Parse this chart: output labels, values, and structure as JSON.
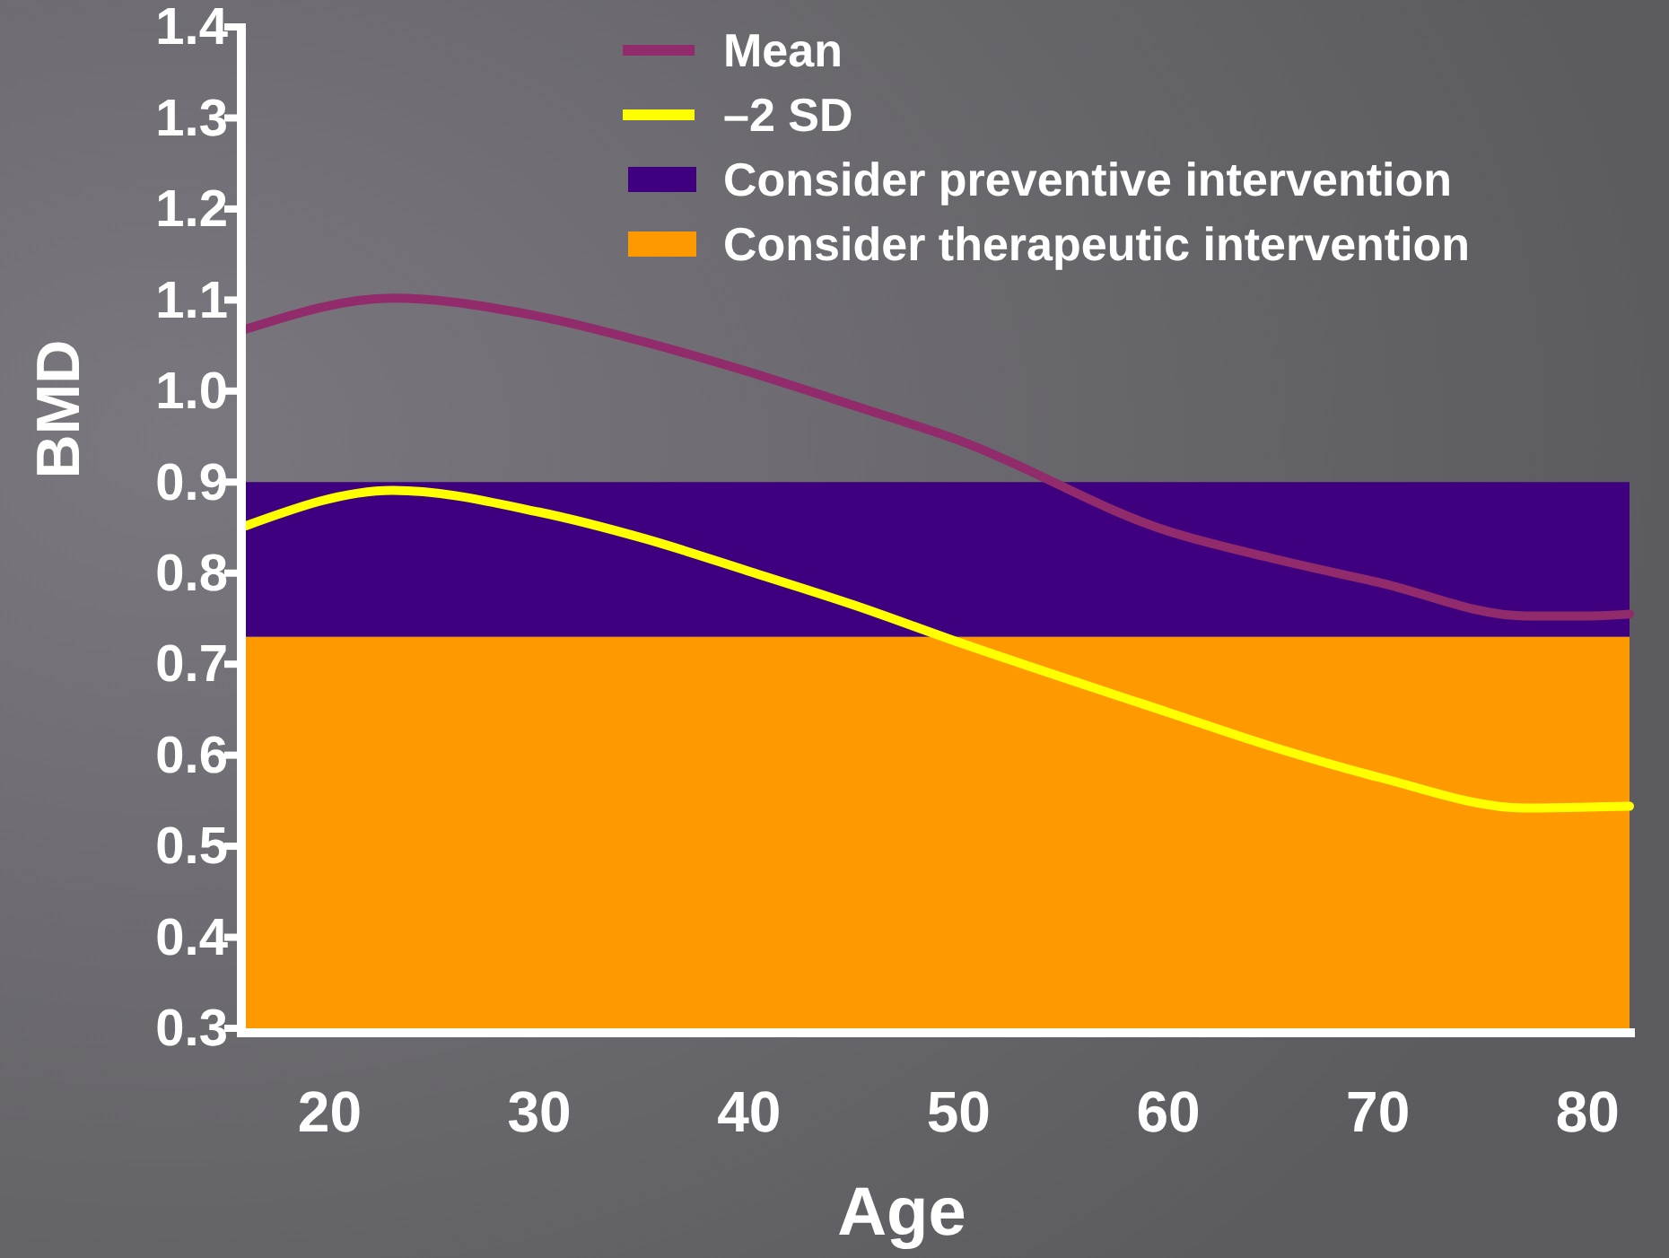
{
  "chart_data": {
    "type": "line",
    "xlabel": "Age",
    "ylabel": "BMD",
    "xlim": [
      16,
      82
    ],
    "xticks": [
      20,
      30,
      40,
      50,
      60,
      70,
      80
    ],
    "ylim": [
      0.3,
      1.4
    ],
    "yticks": [
      {
        "value": 0.3,
        "label": "0.3"
      },
      {
        "value": 0.4,
        "label": "0.4"
      },
      {
        "value": 0.5,
        "label": "0.5"
      },
      {
        "value": 0.6,
        "label": "0.6"
      },
      {
        "value": 0.7,
        "label": "0.7"
      },
      {
        "value": 0.8,
        "label": "0.8"
      },
      {
        "value": 0.9,
        "label": "0.9"
      },
      {
        "value": 1.0,
        "label": "1.0"
      },
      {
        "value": 1.1,
        "label": "1.1"
      },
      {
        "value": 1.2,
        "label": "1.2"
      },
      {
        "value": 1.3,
        "label": "1.3"
      },
      {
        "value": 1.4,
        "label": "1.4"
      }
    ],
    "x": [
      16,
      23,
      30,
      35,
      40,
      45,
      50,
      60,
      65,
      70,
      77,
      80,
      82
    ],
    "series": [
      {
        "name": "Mean",
        "color": "#922b6b",
        "values": [
          1.068,
          1.102,
          1.082,
          1.054,
          1.021,
          0.984,
          0.946,
          0.846,
          0.816,
          0.79,
          0.753,
          0.753,
          0.755
        ]
      },
      {
        "name": "–2 SD",
        "color": "#ffff00",
        "values": [
          0.852,
          0.891,
          0.867,
          0.838,
          0.802,
          0.765,
          0.724,
          0.647,
          0.609,
          0.576,
          0.542,
          0.543,
          0.544
        ]
      }
    ],
    "bands": [
      {
        "axis": "y",
        "from": 0.73,
        "to": 0.9,
        "label": "Consider preventive intervention",
        "color": "#3f007f"
      },
      {
        "axis": "y",
        "from": 0.3,
        "to": 0.73,
        "label": "Consider therapeutic intervention",
        "color": "#ff9900"
      }
    ],
    "legend": "top right",
    "grid": false,
    "marker": "none",
    "line_style": "solid"
  }
}
